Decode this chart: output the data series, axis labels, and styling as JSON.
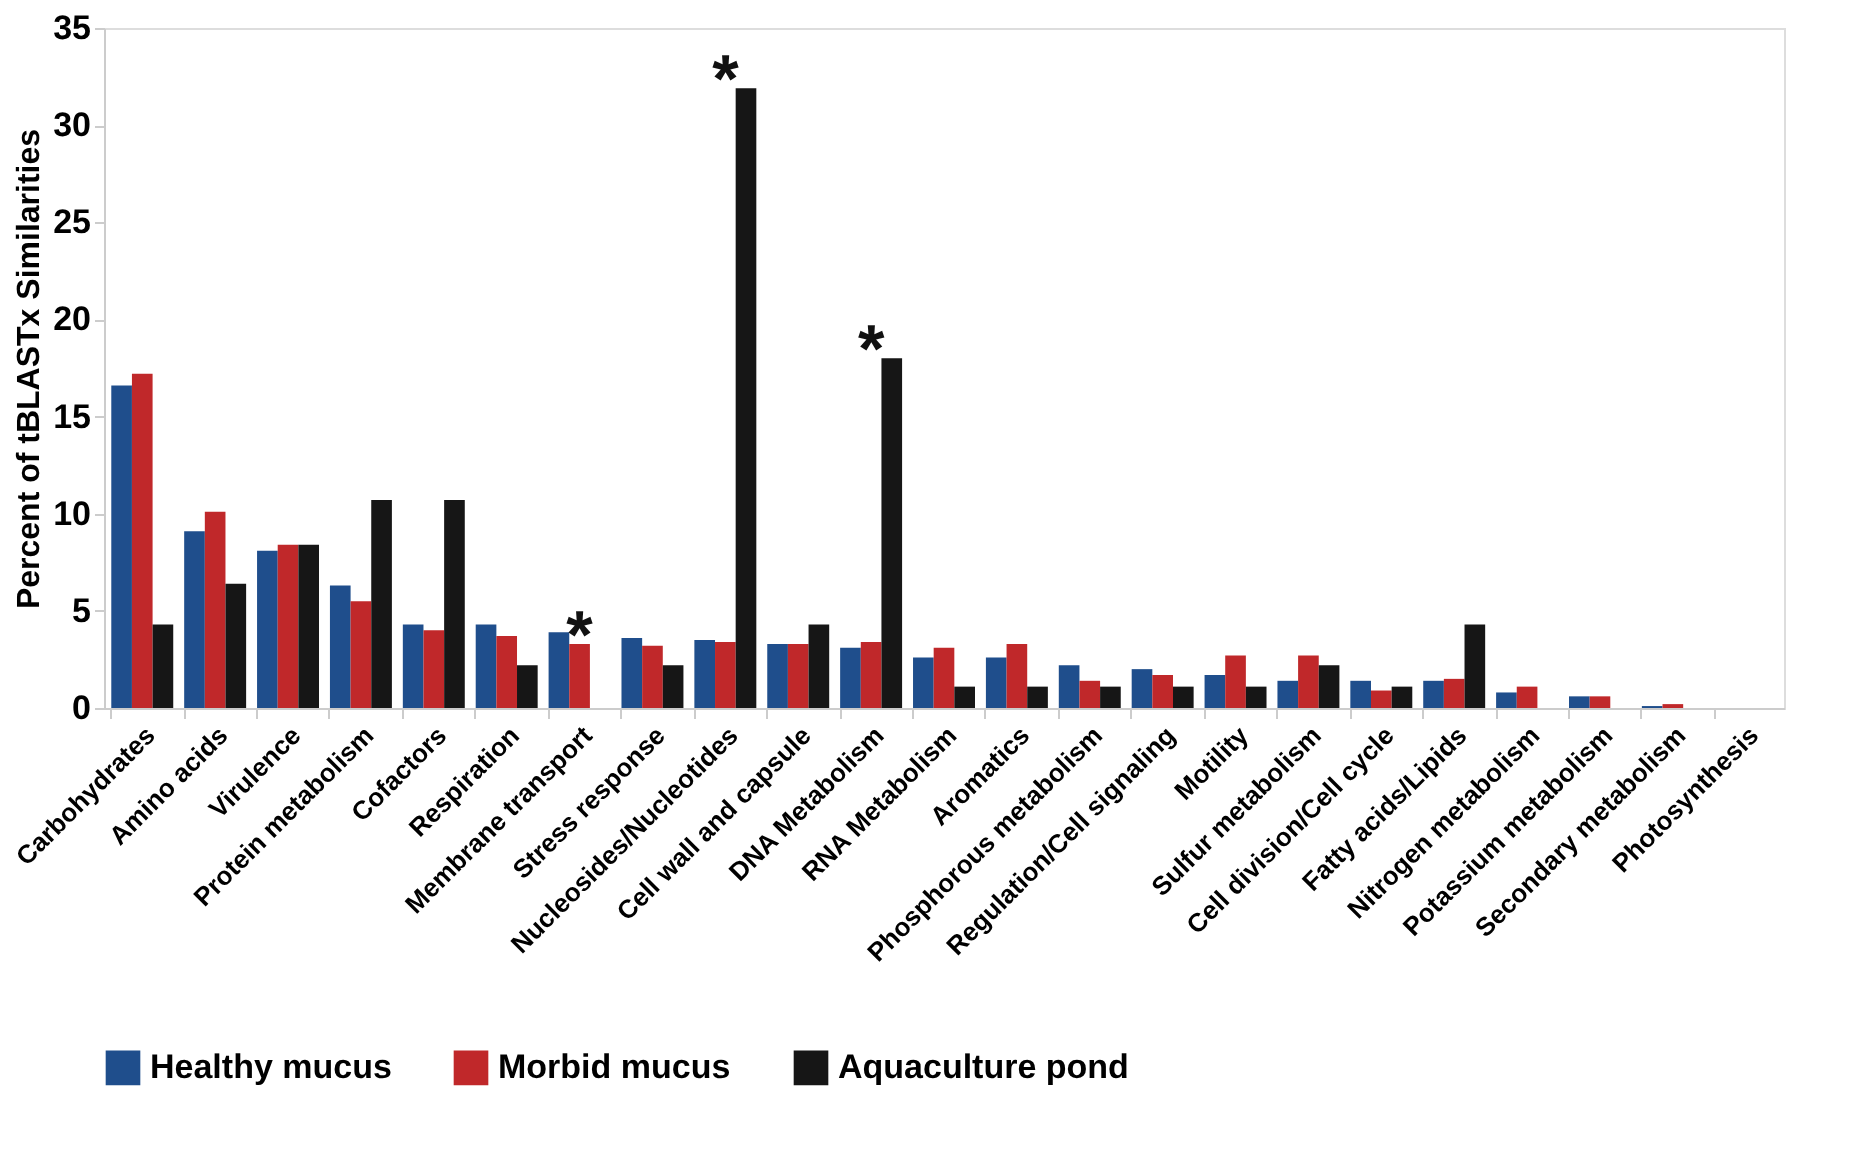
{
  "chart_data": {
    "type": "bar",
    "ylabel": "Percent of tBLASTx Similarities",
    "categories": [
      "Carbohydrates",
      "Amino acids",
      "Virulence",
      "Protein metabolism",
      "Cofactors",
      "Respiration",
      "Membrane transport",
      "Stress response",
      "Nucleosides/Nucleotides",
      "Cell wall and capsule",
      "DNA Metabolism",
      "RNA Metabolism",
      "Aromatics",
      "Phosphorous metabolism",
      "Regulation/Cell signaling",
      "Motility",
      "Sulfur metabolism",
      "Cell division/Cell cycle",
      "Fatty acids/Lipids",
      "Nitrogen metabolism",
      "Potassium metabolism",
      "Secondary metabolism",
      "Photosynthesis"
    ],
    "series": [
      {
        "name": "Healthy mucus",
        "color": "#1f4e8c",
        "values": [
          16.6,
          9.1,
          8.1,
          6.3,
          4.3,
          4.3,
          3.9,
          3.6,
          3.5,
          3.3,
          3.1,
          2.6,
          2.6,
          2.2,
          2.0,
          1.7,
          1.4,
          1.4,
          1.4,
          0.8,
          0.6,
          0.1,
          0
        ]
      },
      {
        "name": "Morbid mucus",
        "color": "#c0282a",
        "values": [
          17.2,
          10.1,
          8.4,
          5.5,
          4.0,
          3.7,
          3.3,
          3.2,
          3.4,
          3.3,
          3.4,
          3.1,
          3.3,
          1.4,
          1.7,
          2.7,
          2.7,
          0.9,
          1.5,
          1.1,
          0.6,
          0.2,
          0
        ]
      },
      {
        "name": "Aquaculture pond",
        "color": "#161616",
        "values": [
          4.3,
          6.4,
          8.4,
          10.7,
          10.7,
          2.2,
          0,
          2.2,
          31.9,
          4.3,
          18.0,
          1.1,
          1.1,
          1.1,
          1.1,
          1.1,
          2.2,
          1.1,
          4.3,
          0,
          0,
          0,
          0
        ]
      }
    ],
    "ylim": [
      0,
      35
    ],
    "yticks": [
      0,
      5,
      10,
      15,
      20,
      25,
      30,
      35
    ],
    "grid": false,
    "legend": "bottom",
    "annotations": [
      {
        "text": "*",
        "x": "Membrane transport",
        "y": 3.3
      },
      {
        "text": "*",
        "x": "Nucleosides/Nucleotides",
        "y": 31.9
      },
      {
        "text": "*",
        "x": "DNA Metabolism",
        "y": 18.0
      }
    ]
  }
}
